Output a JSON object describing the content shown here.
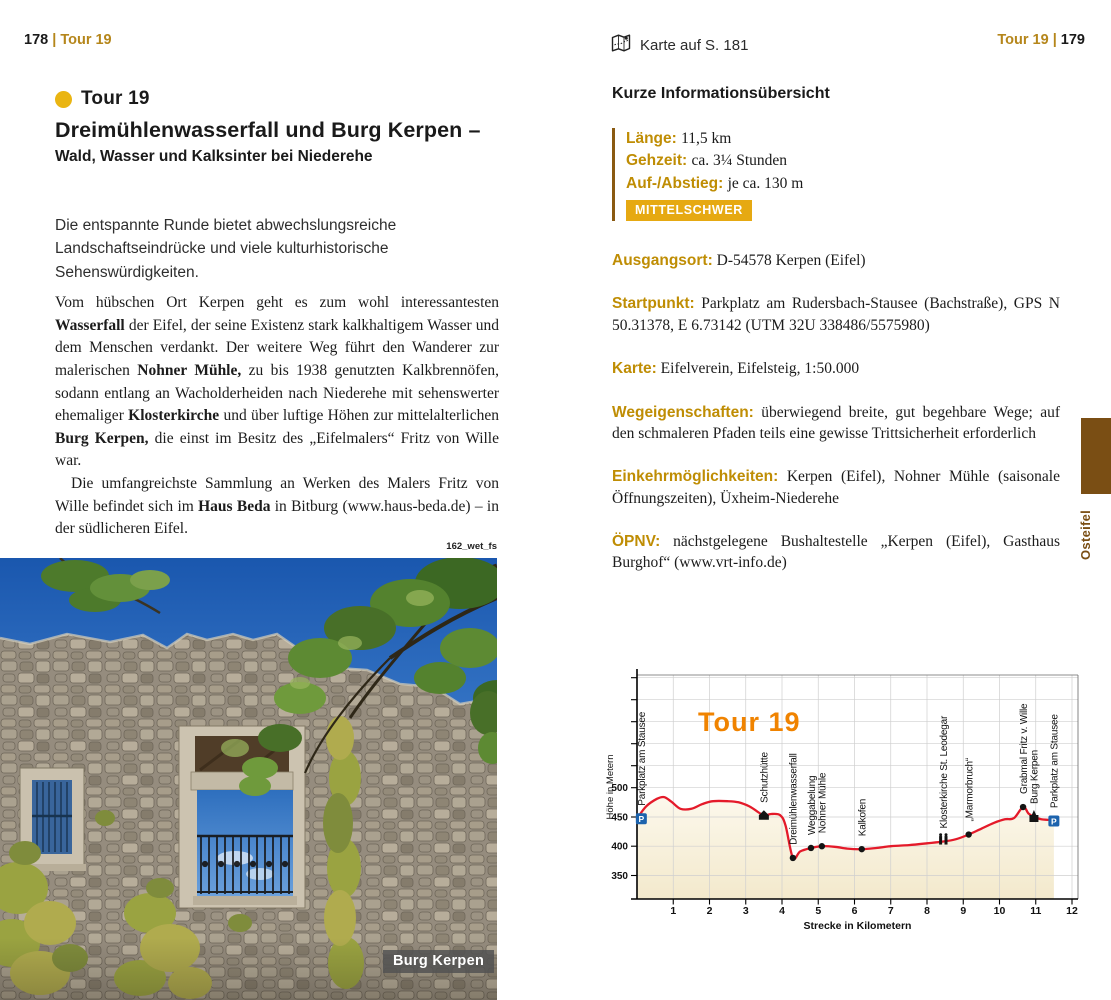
{
  "left": {
    "header": {
      "page_num": "178",
      "sep": "|",
      "tour": "Tour 19"
    },
    "tour_label": "Tour 19",
    "title": "Dreimühlenwasserfall und Burg Kerpen –",
    "subtitle": "Wald, Wasser und Kalksinter bei Niederehe",
    "intro": "Die entspannte Runde bietet abwechslungsreiche Landschaftseindrücke und viele kulturhistorische Sehenswürdigkeiten.",
    "body": [
      {
        "segments": [
          {
            "t": "Vom hübschen Ort Kerpen geht es zum wohl interessantesten "
          },
          {
            "t": "Wasserfall",
            "b": true
          },
          {
            "t": " der Eifel, der seine Existenz stark kalkhaltigem Wasser und dem Menschen verdankt. Der weitere Weg führt den Wanderer zur malerischen "
          },
          {
            "t": "Nohner Mühle,",
            "b": true
          },
          {
            "t": " zu bis 1938 genutzten Kalkbrennöfen, sodann entlang an Wacholderheiden nach Niederehe mit sehenswerter ehemaliger "
          },
          {
            "t": "Klosterkirche",
            "b": true
          },
          {
            "t": " und über luftige Höhen zur mittelalterlichen "
          },
          {
            "t": "Burg Kerpen,",
            "b": true
          },
          {
            "t": " die einst im Besitz des „Eifelmalers“ Fritz von Wille war."
          }
        ]
      },
      {
        "indent": true,
        "segments": [
          {
            "t": "Die umfangreichste Sammlung an Werken des Malers Fritz von Wille befindet sich im "
          },
          {
            "t": "Haus Beda",
            "b": true
          },
          {
            "t": " in Bitburg (www.haus-beda.de) – in der südlicheren Eifel."
          }
        ]
      }
    ],
    "photo": {
      "credit": "162_wet_fs",
      "caption": "Burg Kerpen"
    }
  },
  "right": {
    "header_center": "Karte auf S. 181",
    "header": {
      "tour": "Tour 19",
      "sep": "|",
      "page_num": "179"
    },
    "info_title": "Kurze Informationsübersicht",
    "info_box": [
      {
        "label": "Länge:",
        "value": "11,5 km"
      },
      {
        "label": "Gehzeit:",
        "value": "ca. 3¼ Stunden"
      },
      {
        "label": "Auf-/Abstieg:",
        "value": "je ca. 130 m"
      }
    ],
    "difficulty_badge": "MITTELSCHWER",
    "details": [
      {
        "label": "Ausgangsort:",
        "value": "D-54578 Kerpen (Eifel)"
      },
      {
        "label": "Startpunkt:",
        "value": "Parkplatz am Rudersbach-Stausee (Bachstraße), GPS N 50.31378, E 6.73142 (UTM 32U 338486/5575980)"
      },
      {
        "label": "Karte:",
        "value": "Eifelverein, Eifelsteig, 1:50.000"
      },
      {
        "label": "Wegeigenschaften:",
        "value": "überwiegend breite, gut begehbare Wege; auf den schmaleren Pfaden teils eine gewisse Trittsicherheit erforderlich"
      },
      {
        "label": "Einkehrmöglichkeiten:",
        "value": "Kerpen (Eifel), Nohner Mühle (saisonale Öffnungszeiten), Üxheim-Niederehe"
      },
      {
        "label": "ÖPNV:",
        "value": "nächstgelegene Bushaltestelle „Kerpen (Eifel), Gasthaus Burghof“ (www.vrt-info.de)"
      }
    ],
    "side_tab": "Osteifel"
  },
  "colors": {
    "accent_gold": "#b5861b",
    "label_gold": "#bf8d04",
    "badge_bg": "#e6a912",
    "bullet_yellow": "#eab512",
    "tab_brown": "#7a4e14",
    "chart_title_orange": "#f08300",
    "line_red": "#e41a2a",
    "fill_cream": "#f3e9cc",
    "parking_blue": "#1c63ad"
  },
  "chart_data": {
    "type": "area",
    "title": "Tour 19",
    "xlabel": "Strecke in Kilometern",
    "ylabel": "Höhe in Metern",
    "x_ticks": [
      1,
      2,
      3,
      4,
      5,
      6,
      7,
      8,
      9,
      10,
      11,
      12
    ],
    "y_ticks": [
      350,
      400,
      450,
      500
    ],
    "xlim": [
      0,
      12.2
    ],
    "ylim": [
      300,
      700
    ],
    "grid": true,
    "profile_km_m": [
      [
        0,
        447
      ],
      [
        0.25,
        468
      ],
      [
        0.55,
        481
      ],
      [
        0.75,
        484
      ],
      [
        0.95,
        476
      ],
      [
        1.2,
        464
      ],
      [
        1.5,
        464
      ],
      [
        1.8,
        472
      ],
      [
        2.1,
        477
      ],
      [
        2.5,
        477
      ],
      [
        2.8,
        475
      ],
      [
        3.1,
        468
      ],
      [
        3.35,
        458
      ],
      [
        3.5,
        452
      ],
      [
        3.7,
        455
      ],
      [
        3.95,
        453
      ],
      [
        4.1,
        435
      ],
      [
        4.3,
        380
      ],
      [
        4.5,
        391
      ],
      [
        4.8,
        397
      ],
      [
        5.1,
        400
      ],
      [
        5.45,
        399
      ],
      [
        5.8,
        396
      ],
      [
        6.2,
        395
      ],
      [
        6.6,
        397
      ],
      [
        7.0,
        400
      ],
      [
        7.5,
        402
      ],
      [
        8.0,
        405
      ],
      [
        8.45,
        408
      ],
      [
        8.8,
        412
      ],
      [
        9.15,
        420
      ],
      [
        9.5,
        430
      ],
      [
        9.85,
        440
      ],
      [
        10.15,
        446
      ],
      [
        10.4,
        448
      ],
      [
        10.65,
        467
      ],
      [
        10.8,
        456
      ],
      [
        10.95,
        450
      ],
      [
        11.15,
        446
      ],
      [
        11.35,
        445
      ],
      [
        11.5,
        443
      ]
    ],
    "waypoints": [
      {
        "km": 0.12,
        "m": 447,
        "label": "Parkplatz am Stausee",
        "marker": "parking-icon"
      },
      {
        "km": 3.5,
        "m": 452,
        "label": "Schutzhütte",
        "marker": "hut-icon"
      },
      {
        "km": 4.3,
        "m": 380,
        "label": "Dreimühlenwasserfall",
        "marker": "dot"
      },
      {
        "km": 4.8,
        "m": 397,
        "label": "Weggabelung",
        "marker": "dot"
      },
      {
        "km": 5.1,
        "m": 400,
        "label": "Nohner Mühle",
        "marker": "dot"
      },
      {
        "km": 6.2,
        "m": 395,
        "label": "Kalkofen",
        "marker": "dot"
      },
      {
        "km": 8.45,
        "m": 408,
        "label": "Klosterkirche St. Leodegar",
        "marker": "church-icon"
      },
      {
        "km": 9.15,
        "m": 420,
        "label": "„Marmorbruch“",
        "marker": "dot"
      },
      {
        "km": 10.65,
        "m": 467,
        "label": "Grabmal Fritz v. Wille",
        "marker": "dot"
      },
      {
        "km": 10.95,
        "m": 450,
        "label": "Burg Kerpen",
        "marker": "castle-icon"
      },
      {
        "km": 11.5,
        "m": 443,
        "label": "Parkplatz am Stausee",
        "marker": "parking-icon"
      }
    ]
  }
}
